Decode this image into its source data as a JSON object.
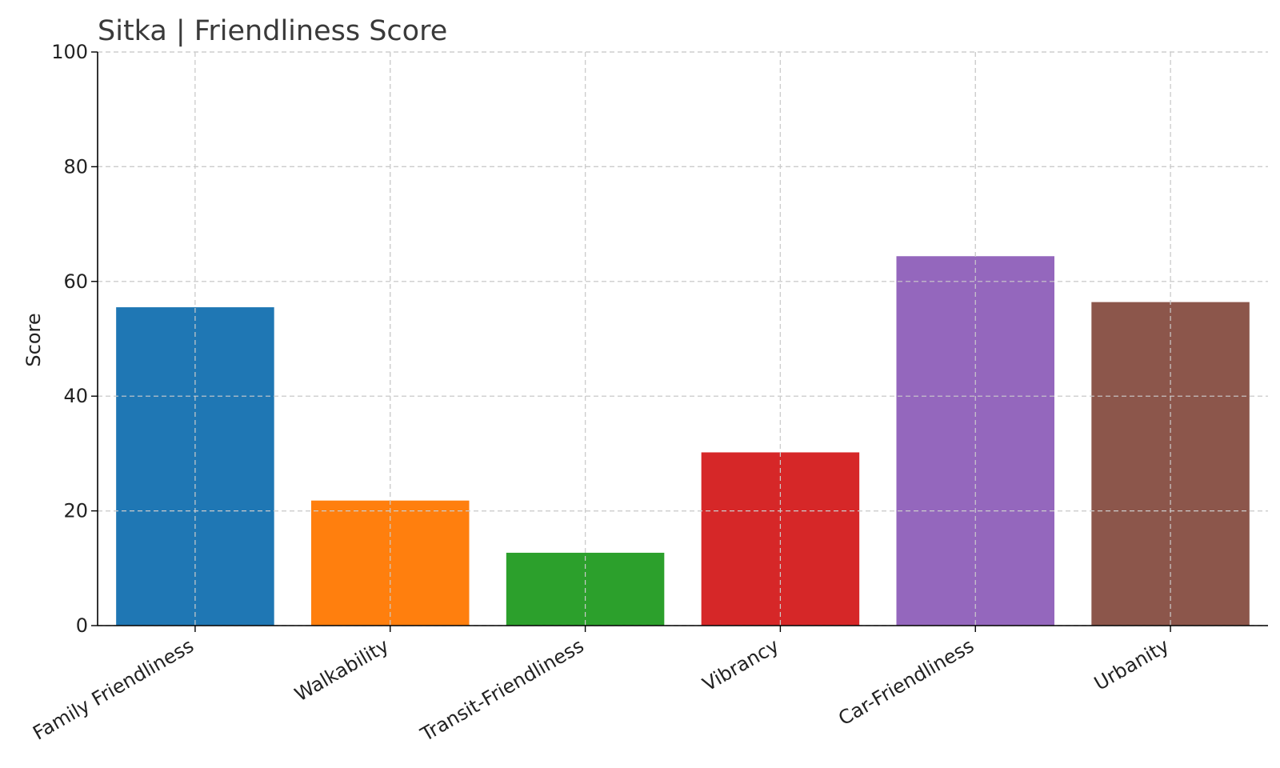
{
  "chart_data": {
    "type": "bar",
    "title": "Sitka | Friendliness Score",
    "xlabel": "",
    "ylabel": "Score",
    "ylim": [
      0,
      100
    ],
    "yticks": [
      0,
      20,
      40,
      60,
      80,
      100
    ],
    "grid": true,
    "categories": [
      "Family Friendliness",
      "Walkability",
      "Transit-Friendliness",
      "Vibrancy",
      "Car-Friendliness",
      "Urbanity"
    ],
    "values": [
      55.5,
      21.8,
      12.7,
      30.2,
      64.4,
      56.4
    ],
    "colors": [
      "#1f77b4",
      "#ff7f0e",
      "#2ca02c",
      "#d62728",
      "#9467bd",
      "#8c564b"
    ]
  }
}
